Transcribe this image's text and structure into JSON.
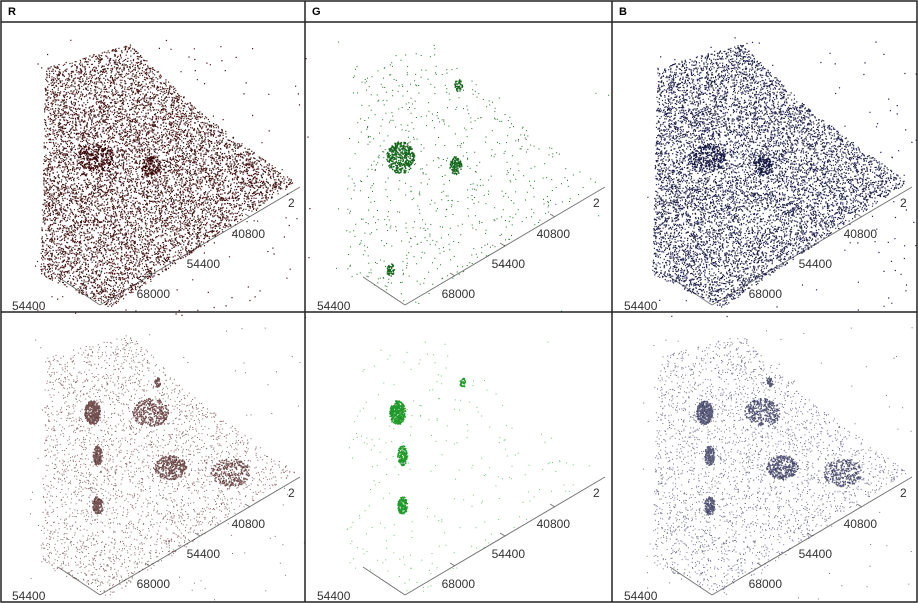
{
  "header": {
    "columns": [
      "R",
      "G",
      "B"
    ]
  },
  "panels": [
    {
      "color": "#3a0808",
      "axis_labels": [
        "2",
        "40800",
        "54400",
        "68000",
        "54400"
      ]
    },
    {
      "color": "#13661a",
      "axis_labels": [
        "2",
        "40800",
        "54400",
        "68000",
        "54400"
      ]
    },
    {
      "color": "#141642",
      "axis_labels": [
        "2",
        "40800",
        "54400",
        "68000",
        "54400"
      ]
    },
    {
      "color": "#3a0808",
      "axis_labels": [
        "2",
        "40800",
        "54400",
        "68000",
        "54400"
      ]
    },
    {
      "color": "#1f9a28",
      "axis_labels": [
        "2",
        "40800",
        "54400",
        "68000",
        "54400"
      ]
    },
    {
      "color": "#141642",
      "axis_labels": [
        "2",
        "40800",
        "54400",
        "68000",
        "54400"
      ]
    }
  ]
}
